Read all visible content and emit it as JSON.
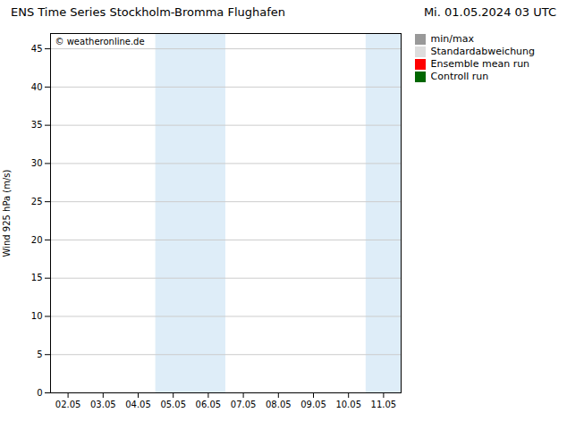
{
  "chart_data": {
    "type": "line",
    "title": "ENS Time Series Stockholm-Bromma Flughafen",
    "subtitle": "Mi. 01.05.2024 03 UTC",
    "ylabel": "Wind 925 hPa (m/s)",
    "annotations": [
      "© weatheronline.de"
    ],
    "categories": [
      "02.05",
      "03.05",
      "04.05",
      "05.05",
      "06.05",
      "07.05",
      "08.05",
      "09.05",
      "10.05",
      "11.05"
    ],
    "series": [
      {
        "name": "min/max",
        "color": "#999999",
        "values": [
          null,
          null,
          null,
          null,
          null,
          null,
          null,
          null,
          null,
          null
        ]
      },
      {
        "name": "Standardabweichung",
        "color": "#dddddd",
        "values": [
          null,
          null,
          null,
          null,
          null,
          null,
          null,
          null,
          null,
          null
        ]
      },
      {
        "name": "Ensemble mean run",
        "color": "#ff0000",
        "values": [
          null,
          null,
          null,
          null,
          null,
          null,
          null,
          null,
          null,
          null
        ]
      },
      {
        "name": "Controll run",
        "color": "#006600",
        "values": [
          null,
          null,
          null,
          null,
          null,
          null,
          null,
          null,
          null,
          null
        ]
      }
    ],
    "shaded_bands": {
      "color": "#deedf8",
      "ranges": [
        [
          2.5,
          4.5
        ],
        [
          8.5,
          10.5
        ]
      ]
    },
    "ylim": [
      0,
      47
    ],
    "yticks": [
      0,
      5,
      10,
      15,
      20,
      25,
      30,
      35,
      40,
      45
    ],
    "grid": "y",
    "legend": "right"
  }
}
